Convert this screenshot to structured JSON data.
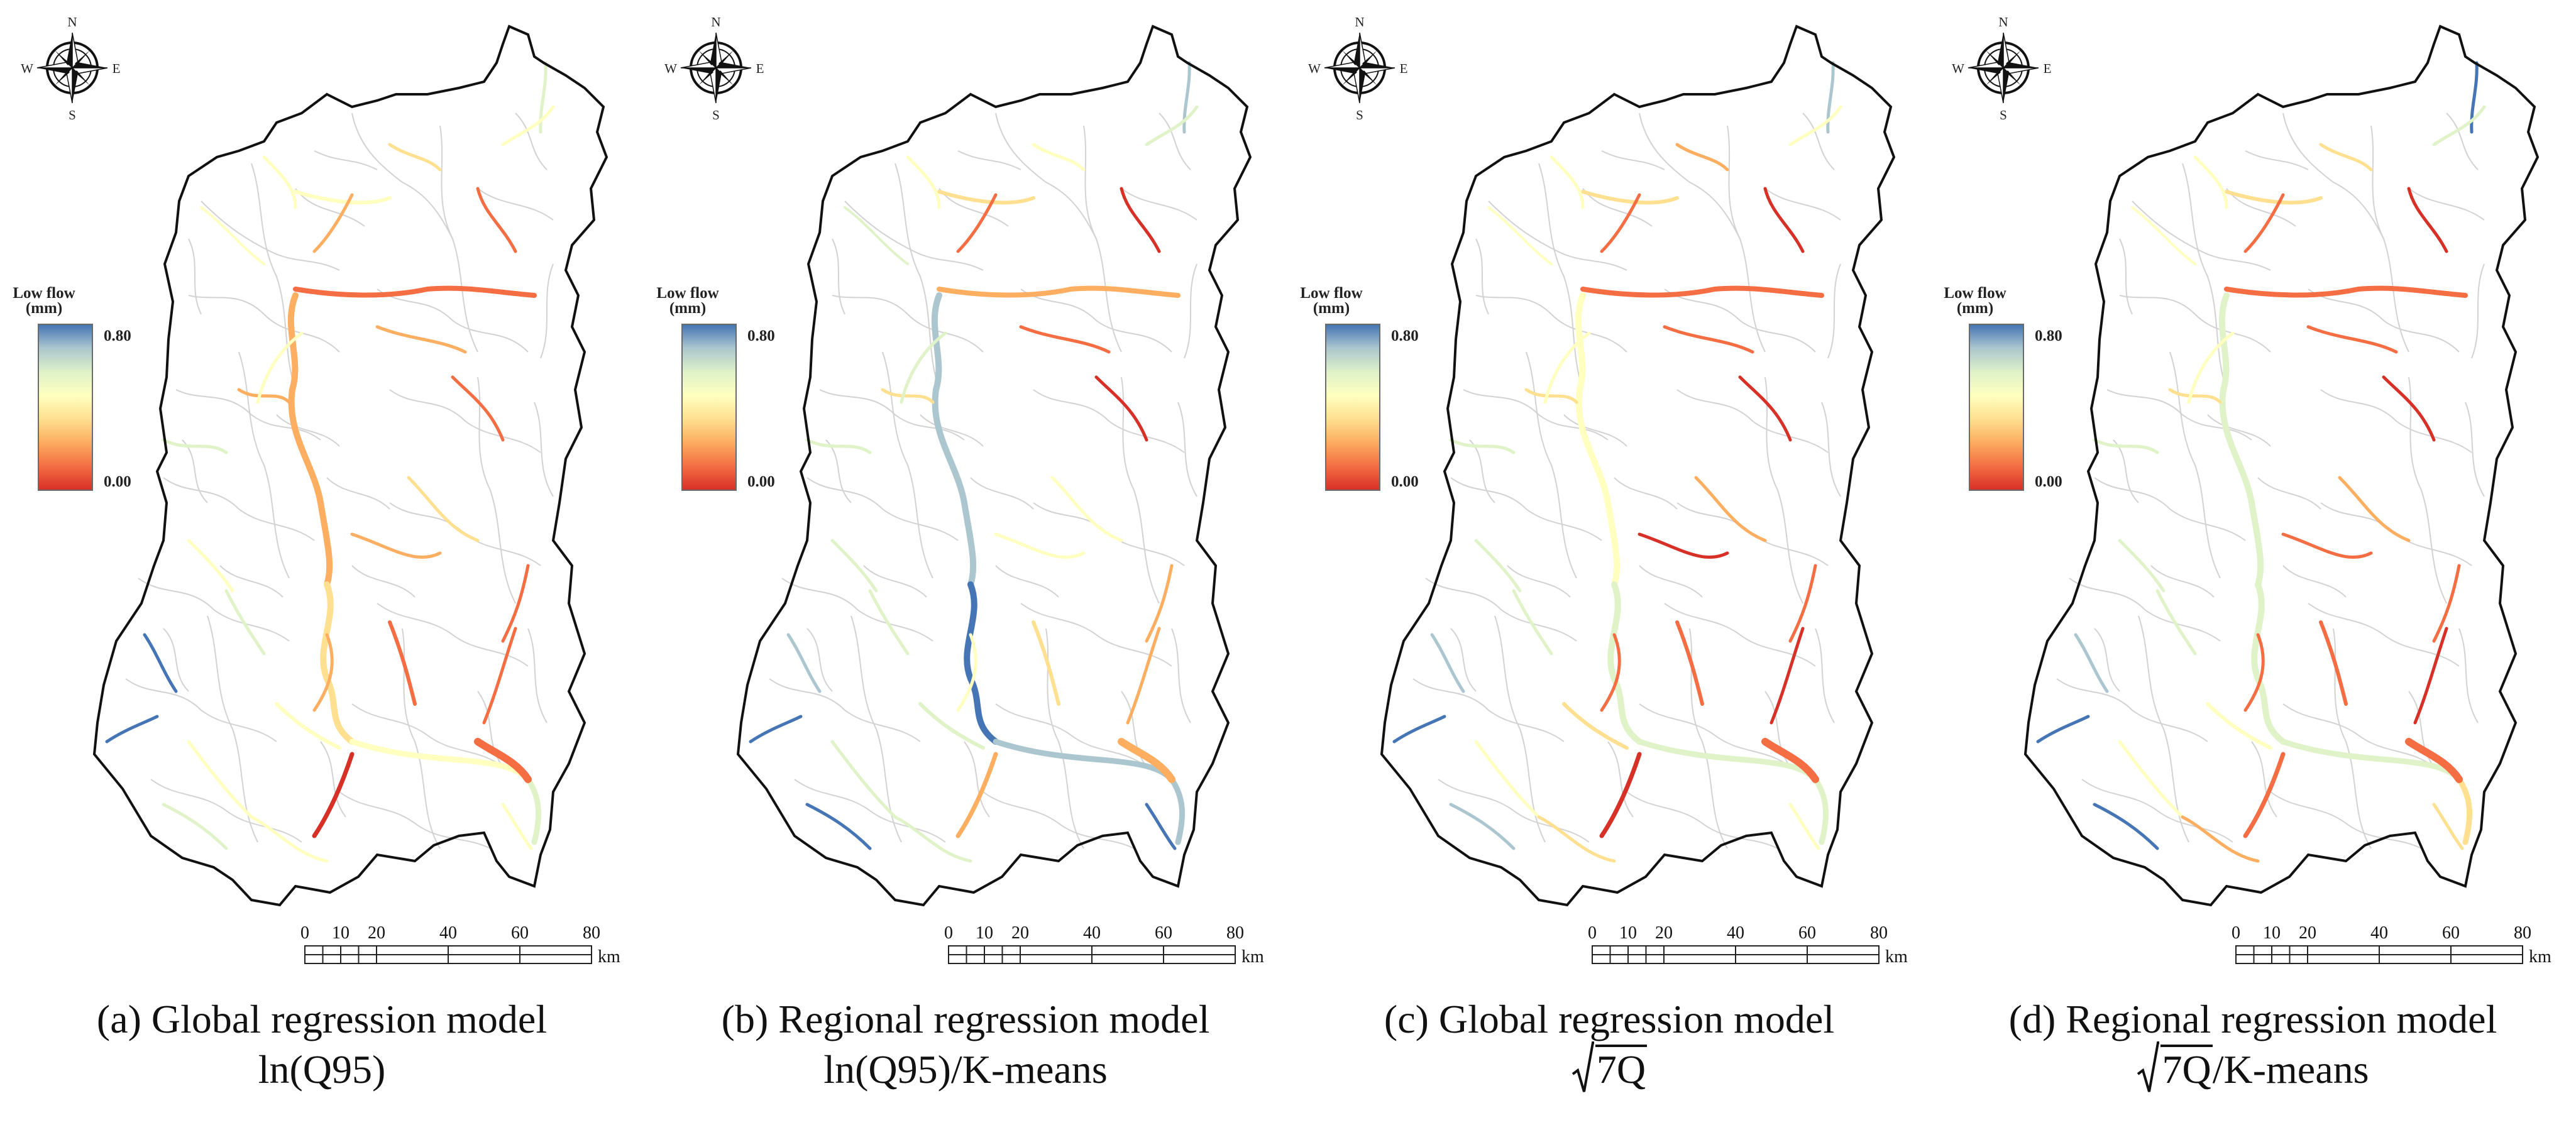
{
  "compass": {
    "n": "N",
    "s": "S",
    "e": "E",
    "w": "W"
  },
  "legend": {
    "title_line1": "Low flow",
    "title_line2": "(mm)",
    "max_label": "0.80",
    "min_label": "0.00",
    "min_value": 0.0,
    "max_value": 0.8,
    "colors": [
      "#d73027",
      "#f46d43",
      "#fdae61",
      "#fee090",
      "#ffffbf",
      "#e0f3c8",
      "#abc6cf",
      "#4575b4"
    ]
  },
  "scale_bar": {
    "ticks": [
      "0",
      "10",
      "20",
      "40",
      "60",
      "80"
    ],
    "unit": "km"
  },
  "panels": [
    {
      "id": "a",
      "caption": "(a) Global regression model",
      "formula": "ln(Q95)",
      "sqrt_formula": false
    },
    {
      "id": "b",
      "caption": "(b) Regional regression model",
      "formula": "ln(Q95)/K-means",
      "sqrt_formula": false
    },
    {
      "id": "c",
      "caption": "(c) Global regression model",
      "formula": "7Q",
      "sqrt_formula": true
    },
    {
      "id": "d",
      "caption": "(d) Regional regression model",
      "formula": "7Q",
      "formula_suffix": "/K-means",
      "sqrt_formula": true
    }
  ]
}
